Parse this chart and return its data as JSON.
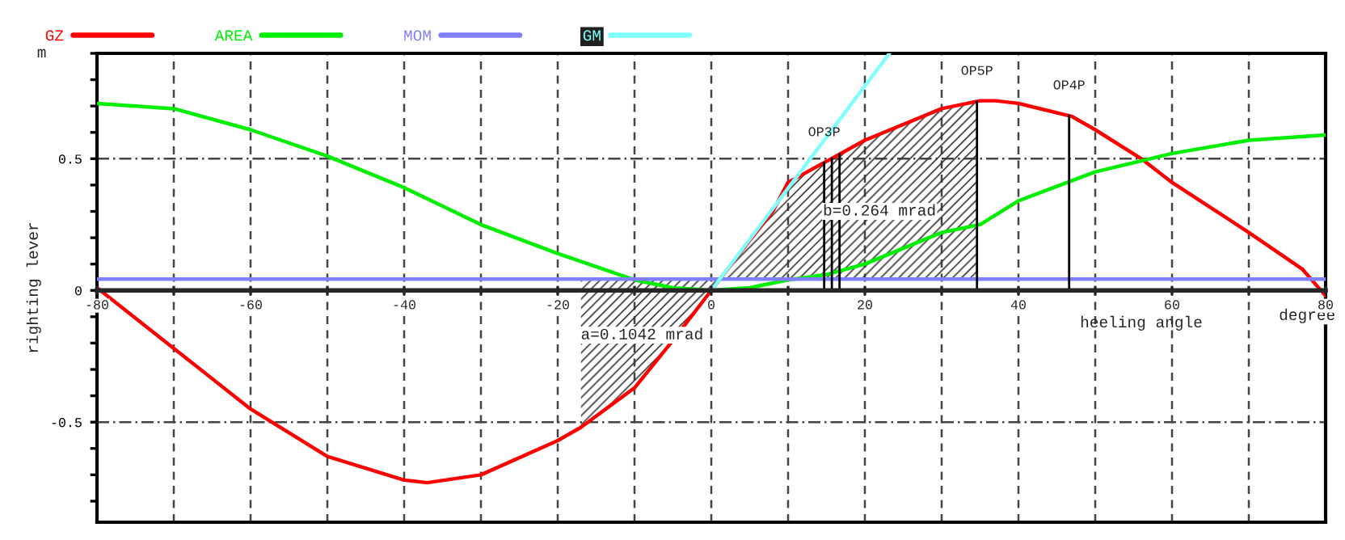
{
  "chart_data": {
    "type": "line",
    "xlabel": "heeling angle",
    "ylabel": "righting lever",
    "annotations": [
      "m",
      "degree"
    ],
    "series": [
      {
        "name": "GZ",
        "color": "#ff0000",
        "x": [
          -80,
          -70,
          -60,
          -50,
          -40,
          -37,
          -30,
          -20,
          -17,
          -10,
          -5,
          0,
          5,
          8,
          10,
          15,
          20,
          30,
          35,
          37,
          40,
          47,
          50,
          56,
          60,
          70,
          77,
          80
        ],
        "values": [
          0.01,
          -0.22,
          -0.45,
          -0.63,
          -0.72,
          -0.73,
          -0.7,
          -0.57,
          -0.52,
          -0.37,
          -0.19,
          0,
          0.19,
          0.3,
          0.41,
          0.49,
          0.57,
          0.69,
          0.72,
          0.72,
          0.71,
          0.66,
          0.61,
          0.5,
          0.41,
          0.22,
          0.08,
          -0.02
        ]
      },
      {
        "name": "AREA",
        "color": "#00ee00",
        "x": [
          -80,
          -70,
          -60,
          -50,
          -40,
          -30,
          -20,
          -13,
          -10,
          -5,
          0,
          5,
          10,
          15,
          20,
          30,
          35,
          40,
          50,
          60,
          70,
          80
        ],
        "values": [
          0.71,
          0.69,
          0.61,
          0.51,
          0.39,
          0.25,
          0.14,
          0.07,
          0.04,
          0.01,
          0,
          0.01,
          0.04,
          0.06,
          0.1,
          0.22,
          0.25,
          0.34,
          0.45,
          0.52,
          0.57,
          0.59
        ]
      },
      {
        "name": "MOM",
        "color": "#8080ff",
        "x": [
          -80,
          80
        ],
        "values": [
          0.043,
          0.043
        ]
      },
      {
        "name": "GM",
        "color": "#80ffff",
        "x": [
          0,
          23.2
        ],
        "values": [
          0,
          0.9
        ]
      }
    ],
    "xlim": [
      -80,
      80
    ],
    "ylim": [
      -0.88,
      0.9
    ],
    "xticks": [
      -80,
      {
        "value": -70,
        "label": null
      },
      -60,
      {
        "value": -50,
        "label": null
      },
      -40,
      {
        "value": -30,
        "label": null
      },
      -20,
      {
        "value": -10,
        "label": null
      },
      0,
      {
        "value": 10,
        "label": null
      },
      20,
      {
        "value": 30,
        "label": null
      },
      40,
      {
        "value": 50,
        "label": null
      },
      60,
      {
        "value": 70,
        "label": null
      },
      80
    ],
    "yticks": [
      {
        "value": -0.8,
        "label": null
      },
      {
        "value": -0.7,
        "label": null
      },
      {
        "value": -0.6,
        "label": null
      },
      -0.5,
      {
        "value": -0.4,
        "label": null
      },
      {
        "value": -0.3,
        "label": null
      },
      {
        "value": -0.2,
        "label": null
      },
      {
        "value": -0.1,
        "label": null
      },
      0,
      {
        "value": 0.1,
        "label": null
      },
      {
        "value": 0.2,
        "label": null
      },
      {
        "value": 0.3,
        "label": null
      },
      {
        "value": 0.4,
        "label": null
      },
      0.5,
      {
        "value": 0.6,
        "label": null
      },
      {
        "value": 0.7,
        "label": null
      },
      {
        "value": 0.8,
        "label": null
      },
      {
        "value": 0.9,
        "label": null
      }
    ],
    "ref_lines": [
      {
        "axis": "x",
        "value": 14.7,
        "label": "OP3P"
      },
      {
        "axis": "x",
        "value": 15.7,
        "label": null
      },
      {
        "axis": "x",
        "value": 16.7,
        "label": null
      },
      {
        "axis": "x",
        "value": 34.6,
        "label": "OP5P"
      },
      {
        "axis": "x",
        "value": 46.6,
        "label": "OP4P"
      }
    ],
    "bands": [
      {
        "axis": "x",
        "from": -17,
        "to": 0,
        "label": "a=0.1042 mrad"
      },
      {
        "axis": "x",
        "from": 0,
        "to": 34.6,
        "label": "b=0.264 mrad"
      }
    ],
    "grid": true,
    "legend": "top",
    "line_style": "solid",
    "marker": "none"
  }
}
